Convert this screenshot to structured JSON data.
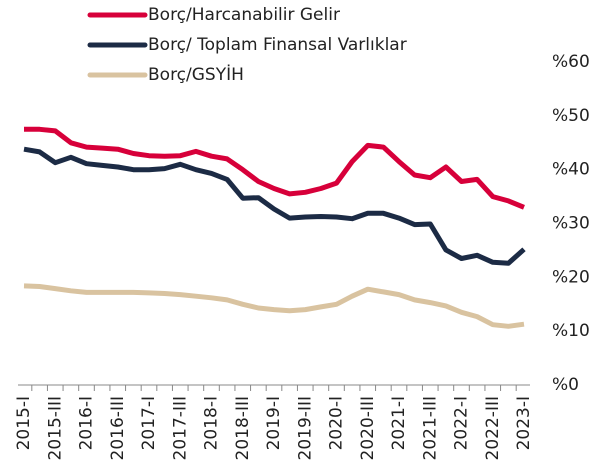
{
  "chart_data": {
    "type": "line",
    "categories": [
      "2015-I",
      null,
      "2015-III",
      null,
      "2016-I",
      null,
      "2016-III",
      null,
      "2017-I",
      null,
      "2017-III",
      null,
      "2018-I",
      null,
      "2018-III",
      null,
      "2019-I",
      null,
      "2019-III",
      null,
      "2020-I",
      null,
      "2020-III",
      null,
      "2021-I",
      null,
      "2021-III",
      null,
      "2022-I",
      null,
      "2022-III",
      null,
      "2023-I"
    ],
    "series": [
      {
        "name": "Borç/Harcanabilir Gelir",
        "color": "#d7003a",
        "values": [
          47.5,
          47.5,
          47.2,
          45,
          44.2,
          44,
          43.8,
          43,
          42.6,
          42.5,
          42.6,
          43.4,
          42.5,
          42,
          40,
          37.8,
          36.5,
          35.5,
          35.8,
          36.5,
          37.5,
          41.5,
          44.5,
          44.2,
          41.5,
          39,
          38.5,
          40.5,
          37.8,
          38.2,
          35,
          34.2,
          33
        ]
      },
      {
        "name": "Borç/ Toplam Finansal Varlıklar",
        "color": "#1c2b45",
        "values": [
          43.8,
          43.3,
          41.3,
          42.3,
          41.1,
          40.8,
          40.5,
          40,
          40,
          40.2,
          41,
          40,
          39.3,
          38.2,
          34.7,
          34.8,
          32.7,
          31,
          31.2,
          31.3,
          31.2,
          30.9,
          31.9,
          31.9,
          31,
          29.8,
          29.9,
          25.1,
          23.5,
          24.1,
          22.8,
          22.6,
          25.2
        ]
      },
      {
        "name": "Borç/GSYİH",
        "color": "#d9c3a0",
        "values": [
          18.4,
          18.3,
          17.9,
          17.5,
          17.2,
          17.2,
          17.2,
          17.2,
          17.1,
          17,
          16.8,
          16.5,
          16.2,
          15.8,
          15,
          14.3,
          14,
          13.8,
          14,
          14.5,
          15,
          16.5,
          17.8,
          17.3,
          16.8,
          15.8,
          15.3,
          14.7,
          13.5,
          12.7,
          11.2,
          10.9,
          11.3
        ]
      }
    ],
    "ylim": [
      0,
      60
    ],
    "yticks": [
      {
        "value": 0,
        "label": "%0"
      },
      {
        "value": 10,
        "label": "%10"
      },
      {
        "value": 20,
        "label": "%20"
      },
      {
        "value": 30,
        "label": "%30"
      },
      {
        "value": 40,
        "label": "%40"
      },
      {
        "value": 50,
        "label": "%50"
      },
      {
        "value": 60,
        "label": "%60"
      }
    ],
    "grid": false,
    "legend": "top-left"
  }
}
